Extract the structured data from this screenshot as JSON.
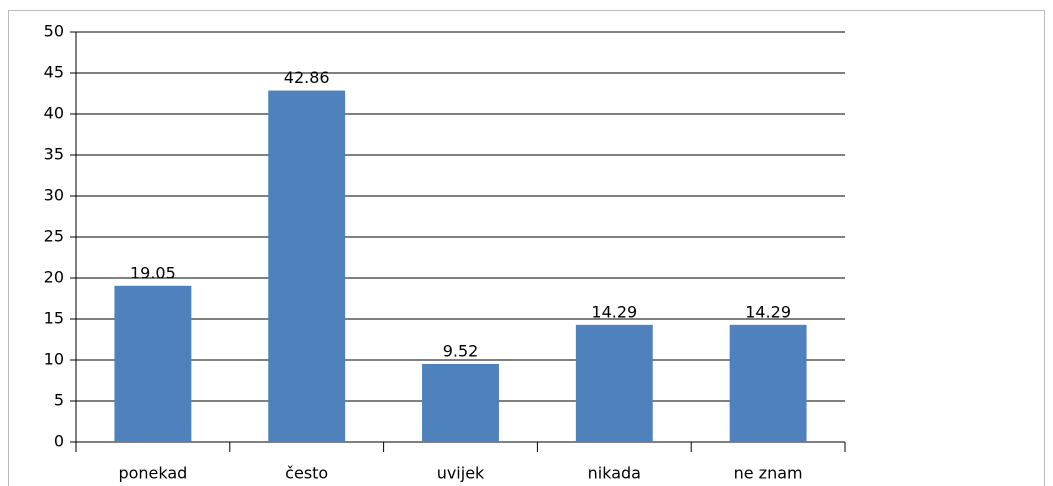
{
  "chart_data": {
    "type": "bar",
    "categories": [
      "ponekad",
      "često",
      "uvijek",
      "nikada",
      "ne znam"
    ],
    "values": [
      19.05,
      42.86,
      9.52,
      14.29,
      14.29
    ],
    "color": "#4f81bd",
    "ylim": [
      0,
      50
    ],
    "yticks": [
      0,
      5,
      10,
      15,
      20,
      25,
      30,
      35,
      40,
      45,
      50
    ],
    "grid": true
  }
}
